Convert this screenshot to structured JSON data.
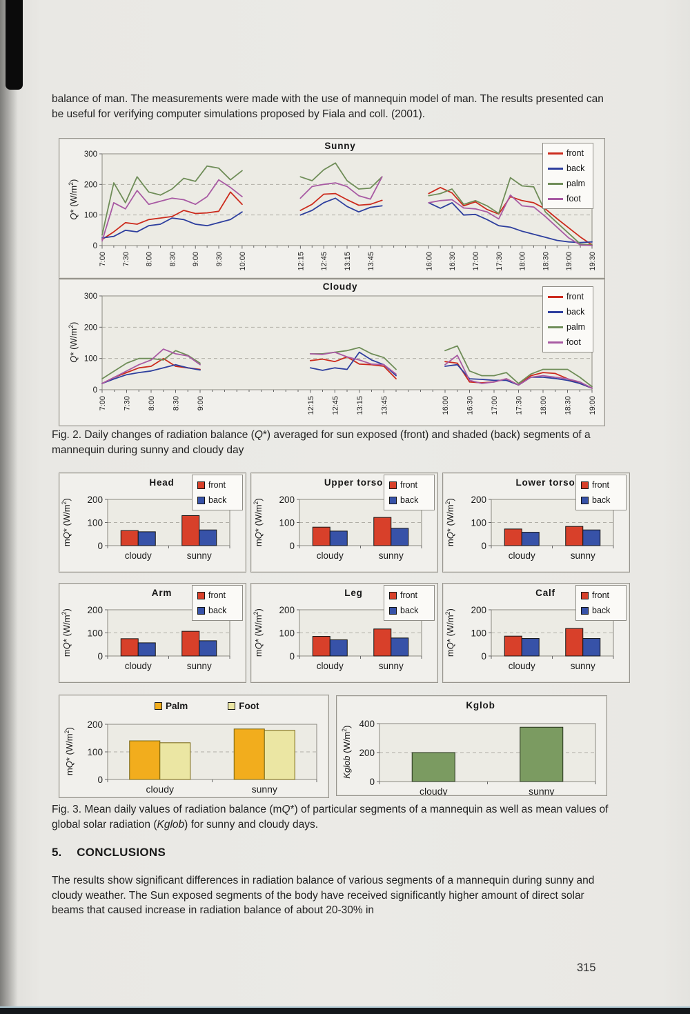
{
  "page": {
    "intro": "balance of man. The measurements were made with the use of mannequin model of man. The results presented can be useful for verifying computer simulations proposed by Fiala and coll. (2001).",
    "fig2_caption": [
      {
        "t": "Fig. 2. Daily changes of radiation balance ("
      },
      {
        "t": "Q",
        "i": 1
      },
      {
        "t": "*) averaged for sun exposed (front) and shaded (back) segments of a mannequin during sunny and cloudy day"
      }
    ],
    "fig3_caption": [
      {
        "t": "Fig. 3. Mean daily values of radiation balance (m"
      },
      {
        "t": "Q",
        "i": 1
      },
      {
        "t": "*) of particular segments of a mannequin as well as mean values of global solar radiation ("
      },
      {
        "t": "Kglob",
        "i": 1
      },
      {
        "t": ") for sunny and cloudy days."
      }
    ],
    "section": {
      "number": "5.",
      "title": "CONCLUSIONS"
    },
    "conclusions": "The results show significant differences in radiation balance of various segments of a mannequin during sunny and cloudy weather. The Sun exposed segments of the body have received significantly higher amount of direct solar beams that caused increase in radiation balance of about 20-30% in",
    "page_number": "315"
  },
  "colors": {
    "line_front": "#cc2b1d",
    "line_back": "#2e3f9e",
    "line_palm": "#6f8d58",
    "line_foot": "#a85aa3",
    "bar_front": "#d8402a",
    "bar_back": "#3752a8",
    "palm_gold": "#f2ad1d",
    "foot_pale": "#ebe6a3",
    "kglob_green": "#7b9b61"
  },
  "chart_data": {
    "sunny": {
      "type": "line",
      "title": "Sunny",
      "ylabel": [
        {
          "t": "Q",
          "i": 1
        },
        {
          "t": "* (W/m"
        },
        {
          "t": "2",
          "sup": 1
        },
        {
          "t": ")"
        }
      ],
      "ylim": [
        0,
        300
      ],
      "yticks": [
        0,
        100,
        200,
        300
      ],
      "total_slots": 43,
      "legend": [
        {
          "name": "front",
          "color": "#cc2b1d"
        },
        {
          "name": "back",
          "color": "#2e3f9e"
        },
        {
          "name": "palm",
          "color": "#6f8d58"
        },
        {
          "name": "foot",
          "color": "#a85aa3"
        }
      ],
      "segments": [
        {
          "start": 0,
          "labels": [
            "7:00",
            "",
            "7:30",
            "",
            "8:00",
            "",
            "8:30",
            "",
            "9:00",
            "",
            "9:30",
            "",
            "10:00"
          ],
          "series": {
            "front": [
              20,
              45,
              75,
              70,
              85,
              90,
              95,
              115,
              105,
              107,
              112,
              175,
              135
            ],
            "back": [
              25,
              30,
              50,
              45,
              65,
              70,
              90,
              85,
              70,
              65,
              75,
              85,
              110
            ],
            "palm": [
              35,
              205,
              140,
              225,
              175,
              165,
              185,
              220,
              210,
              260,
              253,
              215,
              245
            ],
            "foot": [
              15,
              140,
              120,
              180,
              135,
              145,
              155,
              150,
              135,
              160,
              215,
              190,
              160
            ]
          }
        },
        {
          "start": 17,
          "labels": [
            "12:15",
            "",
            "12:45",
            "",
            "13:15",
            "",
            "13:45",
            ""
          ],
          "series": {
            "front": [
              115,
              135,
              168,
              170,
              150,
              132,
              135,
              148
            ],
            "back": [
              100,
              115,
              140,
              155,
              128,
              110,
              125,
              130
            ],
            "palm": [
              225,
              212,
              248,
              270,
              212,
              185,
              188,
              225
            ],
            "foot": [
              155,
              193,
              200,
              205,
              193,
              163,
              152,
              225
            ]
          }
        },
        {
          "start": 28,
          "labels": [
            "16:00",
            "",
            "16:30",
            "",
            "17:00",
            "",
            "17:30",
            "",
            "18:00",
            "",
            "18:30",
            "",
            "19:00",
            "",
            "19:30"
          ],
          "series": {
            "front": [
              170,
              190,
              172,
              130,
              143,
              118,
              103,
              160,
              147,
              140,
              120,
              88,
              58,
              28,
              2
            ],
            "back": [
              140,
              122,
              140,
              100,
              102,
              85,
              65,
              60,
              47,
              37,
              27,
              17,
              12,
              10,
              12
            ],
            "palm": [
              163,
              170,
              185,
              135,
              147,
              130,
              105,
              222,
              195,
              192,
              110,
              75,
              40,
              5,
              2
            ],
            "foot": [
              140,
              147,
              150,
              123,
              120,
              110,
              87,
              165,
              130,
              126,
              95,
              60,
              25,
              2,
              0
            ]
          }
        }
      ]
    },
    "cloudy": {
      "type": "line",
      "title": "Cloudy",
      "ylabel": [
        {
          "t": "Q",
          "i": 1
        },
        {
          "t": "* (W/m"
        },
        {
          "t": "2",
          "sup": 1
        },
        {
          "t": ")"
        }
      ],
      "ylim": [
        0,
        300
      ],
      "yticks": [
        0,
        100,
        200,
        300
      ],
      "total_slots": 41,
      "legend": [
        {
          "name": "front",
          "color": "#cc2b1d"
        },
        {
          "name": "back",
          "color": "#2e3f9e"
        },
        {
          "name": "palm",
          "color": "#6f8d58"
        },
        {
          "name": "foot",
          "color": "#a85aa3"
        }
      ],
      "segments": [
        {
          "start": 0,
          "labels": [
            "7:00",
            "",
            "7:30",
            "",
            "8:00",
            "",
            "8:30",
            "",
            "9:00"
          ],
          "series": {
            "front": [
              20,
              40,
              55,
              70,
              75,
              100,
              75,
              70,
              65
            ],
            "back": [
              20,
              35,
              48,
              55,
              60,
              70,
              80,
              70,
              63
            ],
            "palm": [
              35,
              60,
              85,
              100,
              100,
              95,
              125,
              110,
              85
            ],
            "foot": [
              20,
              40,
              60,
              80,
              95,
              130,
              115,
              108,
              80
            ]
          }
        },
        {
          "start": 17,
          "labels": [
            "12:15",
            "",
            "12:45",
            "",
            "13:15",
            "",
            "13:45",
            ""
          ],
          "series": {
            "front": [
              93,
              98,
              90,
              105,
              82,
              80,
              75,
              35
            ],
            "back": [
              70,
              62,
              70,
              65,
              120,
              95,
              80,
              45
            ],
            "palm": [
              115,
              115,
              120,
              125,
              135,
              115,
              103,
              65
            ],
            "foot": [
              115,
              113,
              120,
              105,
              95,
              82,
              80,
              50
            ]
          }
        },
        {
          "start": 28,
          "labels": [
            "16:00",
            "",
            "16:30",
            "",
            "17:00",
            "",
            "17:30",
            "",
            "18:00",
            "",
            "18:30",
            "",
            "19:00"
          ],
          "series": {
            "front": [
              90,
              85,
              25,
              22,
              25,
              35,
              15,
              45,
              55,
              52,
              35,
              20,
              5
            ],
            "back": [
              75,
              80,
              35,
              33,
              30,
              30,
              15,
              40,
              40,
              36,
              30,
              20,
              5
            ],
            "palm": [
              125,
              140,
              60,
              45,
              45,
              55,
              20,
              50,
              65,
              65,
              65,
              40,
              10
            ],
            "foot": [
              80,
              110,
              30,
              20,
              25,
              35,
              15,
              40,
              45,
              40,
              35,
              25,
              5
            ]
          }
        }
      ]
    },
    "head": {
      "type": "bar",
      "title": "Head",
      "legend_box": true,
      "ylabel": [
        {
          "t": "m"
        },
        {
          "t": "Q",
          "i": 1
        },
        {
          "t": "* (W/m"
        },
        {
          "t": "2",
          "sup": 1
        },
        {
          "t": ")"
        }
      ],
      "ylim": [
        0,
        200
      ],
      "yticks": [
        0,
        100,
        200
      ],
      "categories": [
        "cloudy",
        "sunny"
      ],
      "series": [
        {
          "name": "front",
          "color": "#d8402a",
          "values": [
            65,
            130
          ]
        },
        {
          "name": "back",
          "color": "#3752a8",
          "values": [
            60,
            68
          ]
        }
      ]
    },
    "upper_torso": {
      "type": "bar",
      "title": "Upper torso",
      "legend_box": true,
      "ylabel": [
        {
          "t": "m"
        },
        {
          "t": "Q",
          "i": 1
        },
        {
          "t": "* (W/m"
        },
        {
          "t": "2",
          "sup": 1
        },
        {
          "t": ")"
        }
      ],
      "ylim": [
        0,
        200
      ],
      "yticks": [
        0,
        100,
        200
      ],
      "categories": [
        "cloudy",
        "sunny"
      ],
      "series": [
        {
          "name": "front",
          "color": "#d8402a",
          "values": [
            80,
            122
          ]
        },
        {
          "name": "back",
          "color": "#3752a8",
          "values": [
            63,
            75
          ]
        }
      ]
    },
    "lower_torso": {
      "type": "bar",
      "title": "Lower torso",
      "legend_box": true,
      "ylabel": [
        {
          "t": "m"
        },
        {
          "t": "Q",
          "i": 1
        },
        {
          "t": "* (W/m"
        },
        {
          "t": "2",
          "sup": 1
        },
        {
          "t": ")"
        }
      ],
      "ylim": [
        0,
        200
      ],
      "yticks": [
        0,
        100,
        200
      ],
      "categories": [
        "cloudy",
        "sunny"
      ],
      "series": [
        {
          "name": "front",
          "color": "#d8402a",
          "values": [
            72,
            83
          ]
        },
        {
          "name": "back",
          "color": "#3752a8",
          "values": [
            58,
            68
          ]
        }
      ]
    },
    "arm": {
      "type": "bar",
      "title": "Arm",
      "legend_box": true,
      "ylabel": [
        {
          "t": "m"
        },
        {
          "t": "Q",
          "i": 1
        },
        {
          "t": "* (W/m"
        },
        {
          "t": "2",
          "sup": 1
        },
        {
          "t": ")"
        }
      ],
      "ylim": [
        0,
        200
      ],
      "yticks": [
        0,
        100,
        200
      ],
      "categories": [
        "cloudy",
        "sunny"
      ],
      "series": [
        {
          "name": "front",
          "color": "#d8402a",
          "values": [
            75,
            107
          ]
        },
        {
          "name": "back",
          "color": "#3752a8",
          "values": [
            57,
            66
          ]
        }
      ]
    },
    "leg": {
      "type": "bar",
      "title": "Leg",
      "legend_box": true,
      "ylabel": [
        {
          "t": "m"
        },
        {
          "t": "Q",
          "i": 1
        },
        {
          "t": "* (W/m"
        },
        {
          "t": "2",
          "sup": 1
        },
        {
          "t": ")"
        }
      ],
      "ylim": [
        0,
        200
      ],
      "yticks": [
        0,
        100,
        200
      ],
      "categories": [
        "cloudy",
        "sunny"
      ],
      "series": [
        {
          "name": "front",
          "color": "#d8402a",
          "values": [
            85,
            117
          ]
        },
        {
          "name": "back",
          "color": "#3752a8",
          "values": [
            70,
            78
          ]
        }
      ]
    },
    "calf": {
      "type": "bar",
      "title": "Calf",
      "legend_box": true,
      "ylabel": [
        {
          "t": "m"
        },
        {
          "t": "Q",
          "i": 1
        },
        {
          "t": "* (W/m"
        },
        {
          "t": "2",
          "sup": 1
        },
        {
          "t": ")"
        }
      ],
      "ylim": [
        0,
        200
      ],
      "yticks": [
        0,
        100,
        200
      ],
      "categories": [
        "cloudy",
        "sunny"
      ],
      "series": [
        {
          "name": "front",
          "color": "#d8402a",
          "values": [
            86,
            119
          ]
        },
        {
          "name": "back",
          "color": "#3752a8",
          "values": [
            76,
            76
          ]
        }
      ]
    },
    "palm_foot": {
      "type": "bar",
      "title": "",
      "ylabel": [
        {
          "t": "m"
        },
        {
          "t": "Q",
          "i": 1
        },
        {
          "t": "* (W/m"
        },
        {
          "t": "2",
          "sup": 1
        },
        {
          "t": ")"
        }
      ],
      "ylim": [
        0,
        200
      ],
      "yticks": [
        0,
        100,
        200
      ],
      "categories": [
        "cloudy",
        "sunny"
      ],
      "series": [
        {
          "name": "Palm",
          "color": "#f2ad1d",
          "stroke": "#77650f",
          "values": [
            140,
            183
          ]
        },
        {
          "name": "Foot",
          "color": "#ebe6a3",
          "stroke": "#77650f",
          "values": [
            133,
            178
          ]
        }
      ]
    },
    "kglob": {
      "type": "bar",
      "title": "Kglob",
      "ylabel": [
        {
          "t": "Kglob",
          "i": 1
        },
        {
          "t": " (W/m"
        },
        {
          "t": "2",
          "sup": 1
        },
        {
          "t": ")"
        }
      ],
      "ylim": [
        0,
        400
      ],
      "yticks": [
        0,
        200,
        400
      ],
      "categories": [
        "cloudy",
        "sunny"
      ],
      "series": [
        {
          "name": "Kglob",
          "color": "#7b9b61",
          "stroke": "#24301a",
          "values": [
            200,
            375
          ]
        }
      ]
    }
  }
}
